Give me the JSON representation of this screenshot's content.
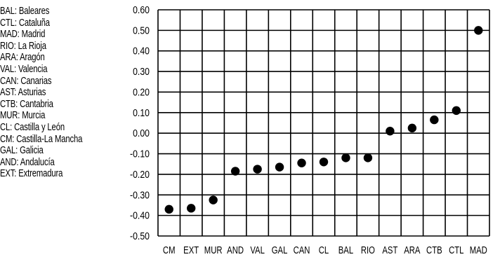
{
  "legend": [
    "BAL: Baleares",
    "CTL: Cataluña",
    "MAD: Madrid",
    "RIO: La Rioja",
    "ARA: Aragón",
    "VAL: Valencia",
    "CAN: Canarias",
    "AST: Asturias",
    "CTB: Cantabria",
    "MUR: Murcia",
    "CL: Castilla y León",
    "CM: Castilla-La Mancha",
    "GAL: Galicia",
    "AND: Andalucía",
    "EXT: Extremadura"
  ],
  "chart_data": {
    "type": "scatter",
    "categories": [
      "CM",
      "EXT",
      "MUR",
      "AND",
      "VAL",
      "GAL",
      "CAN",
      "CL",
      "BAL",
      "RIO",
      "AST",
      "ARA",
      "CTB",
      "CTL",
      "MAD"
    ],
    "values": [
      -0.37,
      -0.365,
      -0.325,
      -0.185,
      -0.175,
      -0.165,
      -0.145,
      -0.14,
      -0.12,
      -0.12,
      0.01,
      0.025,
      0.065,
      0.11,
      0.5
    ],
    "yticks": [
      "0.60",
      "0.50",
      "0.40",
      "0.30",
      "0.20",
      "0.10",
      "0.00",
      "-0.10",
      "-0.20",
      "-0.30",
      "-0.40",
      "-0.50"
    ],
    "ylim": [
      -0.5,
      0.6
    ],
    "grid": true,
    "title": "",
    "xlabel": "",
    "ylabel": "",
    "marker_color": "#000000"
  }
}
